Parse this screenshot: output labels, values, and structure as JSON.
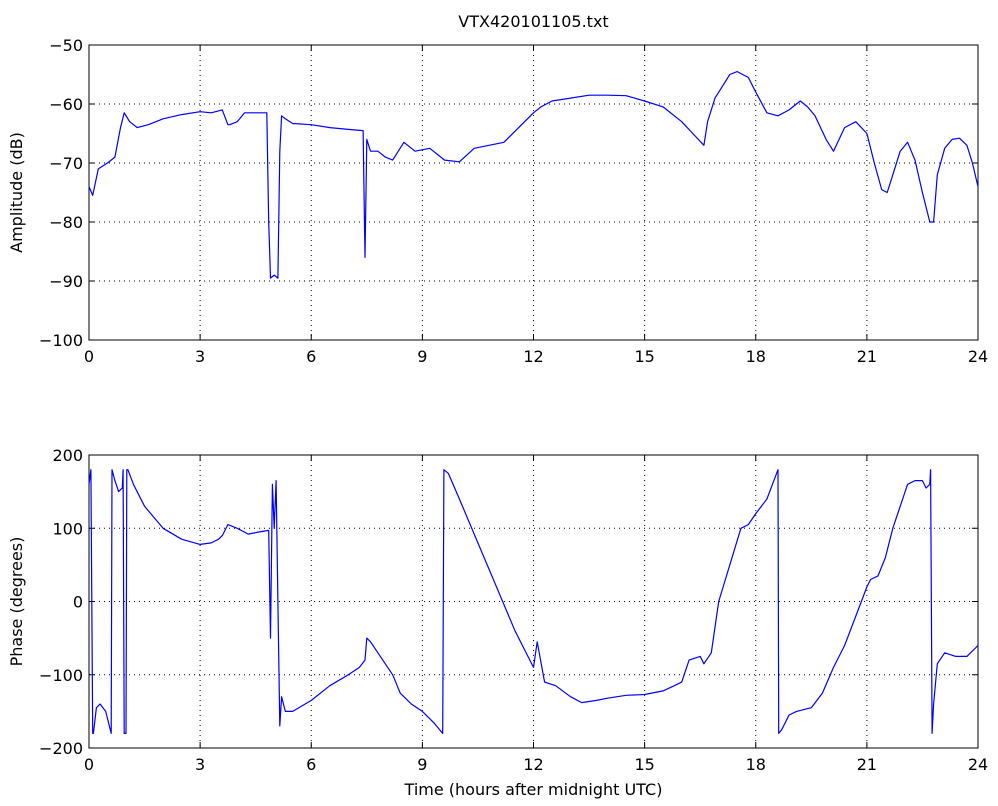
{
  "figure_title": "VTX420101105.txt",
  "colors": {
    "series": "#0000ff",
    "axes": "#000000",
    "background": "#ffffff"
  },
  "chart_data": [
    {
      "type": "line",
      "title": "VTX420101105.txt",
      "xlabel": "",
      "ylabel": "Amplitude (dB)",
      "xlim": [
        0,
        24
      ],
      "ylim": [
        -100,
        -50
      ],
      "xticks": [
        0,
        3,
        6,
        9,
        12,
        15,
        18,
        21,
        24
      ],
      "yticks": [
        -100,
        -90,
        -80,
        -70,
        -60,
        -50
      ],
      "xtick_labels": [
        "0",
        "3",
        "6",
        "9",
        "12",
        "15",
        "18",
        "21",
        "24"
      ],
      "ytick_labels": [
        "−100",
        "−90",
        "−80",
        "−70",
        "−60",
        "−50"
      ],
      "grid": true,
      "series": [
        {
          "x": [
            0,
            0.1,
            0.25,
            0.5,
            0.7,
            0.85,
            0.95,
            1.1,
            1.3,
            1.6,
            2.0,
            2.5,
            3.0,
            3.3,
            3.6,
            3.75,
            3.8,
            4.0,
            4.2,
            4.5,
            4.8,
            4.85,
            4.9,
            5.0,
            5.1,
            5.15,
            5.2,
            5.3,
            5.5,
            6.0,
            6.5,
            7.0,
            7.4,
            7.45,
            7.5,
            7.6,
            7.8,
            8.0,
            8.2,
            8.5,
            8.8,
            9.2,
            9.6,
            10.0,
            10.4,
            10.8,
            11.2,
            11.6,
            12.0,
            12.2,
            12.5,
            13.0,
            13.5,
            14.0,
            14.5,
            15.0,
            15.5,
            16.0,
            16.3,
            16.6,
            16.7,
            16.9,
            17.1,
            17.3,
            17.5,
            17.8,
            18.0,
            18.3,
            18.6,
            18.9,
            19.2,
            19.4,
            19.6,
            19.9,
            20.1,
            20.4,
            20.7,
            21.0,
            21.2,
            21.4,
            21.55,
            21.7,
            21.9,
            22.1,
            22.3,
            22.5,
            22.7,
            22.8,
            22.9,
            23.1,
            23.3,
            23.5,
            23.7,
            23.85,
            24.0
          ],
          "y": [
            -74,
            -75.5,
            -71,
            -70,
            -69,
            -64,
            -61.5,
            -63,
            -64,
            -63.5,
            -62.5,
            -61.8,
            -61.3,
            -61.5,
            -61,
            -63.5,
            -63.5,
            -63,
            -61.5,
            -61.5,
            -61.5,
            -80,
            -89.5,
            -89,
            -89.5,
            -68,
            -62,
            -62.5,
            -63.3,
            -63.5,
            -64,
            -64.3,
            -64.5,
            -86,
            -66,
            -68,
            -68,
            -69,
            -69.5,
            -66.5,
            -68,
            -67.5,
            -69.5,
            -69.8,
            -67.5,
            -67,
            -66.5,
            -64,
            -61.5,
            -60.5,
            -59.5,
            -59,
            -58.5,
            -58.5,
            -58.6,
            -59.5,
            -60.5,
            -63,
            -65,
            -67,
            -63,
            -59,
            -57,
            -55,
            -54.5,
            -55.5,
            -58,
            -61.5,
            -62,
            -61,
            -59.5,
            -60.5,
            -62,
            -66,
            -68,
            -64,
            -63,
            -65,
            -70,
            -74.5,
            -75,
            -72,
            -68,
            -66.5,
            -69.5,
            -75,
            -80,
            -80,
            -72,
            -67.5,
            -66,
            -65.8,
            -67,
            -70,
            -74
          ]
        }
      ]
    },
    {
      "type": "line",
      "title": "",
      "xlabel": "Time (hours after midnight UTC)",
      "ylabel": "Phase (degrees)",
      "xlim": [
        0,
        24
      ],
      "ylim": [
        -200,
        200
      ],
      "xticks": [
        0,
        3,
        6,
        9,
        12,
        15,
        18,
        21,
        24
      ],
      "yticks": [
        -200,
        -100,
        0,
        100,
        200
      ],
      "xtick_labels": [
        "0",
        "3",
        "6",
        "9",
        "12",
        "15",
        "18",
        "21",
        "24"
      ],
      "ytick_labels": [
        "−200",
        "−100",
        "0",
        "100",
        "200"
      ],
      "grid": true,
      "series": [
        {
          "x": [
            0,
            0.05,
            0.1,
            0.12,
            0.2,
            0.3,
            0.45,
            0.6,
            0.62,
            0.7,
            0.8,
            0.9,
            0.92,
            0.95,
            1.0,
            1.02,
            1.05,
            1.2,
            1.5,
            2.0,
            2.5,
            3.0,
            3.3,
            3.5,
            3.6,
            3.75,
            4.0,
            4.3,
            4.6,
            4.85,
            4.9,
            4.95,
            5.0,
            5.05,
            5.1,
            5.15,
            5.2,
            5.3,
            5.5,
            6.0,
            6.5,
            7.0,
            7.3,
            7.45,
            7.5,
            7.6,
            7.8,
            8.0,
            8.2,
            8.4,
            8.7,
            9.0,
            9.3,
            9.55,
            9.58,
            9.7,
            10.0,
            10.5,
            11.0,
            11.5,
            12.0,
            12.1,
            12.3,
            12.6,
            13.0,
            13.3,
            13.7,
            14.0,
            14.5,
            15.0,
            15.5,
            15.8,
            16.0,
            16.2,
            16.5,
            16.6,
            16.8,
            17.0,
            17.3,
            17.6,
            17.8,
            18.0,
            18.3,
            18.6,
            18.62,
            18.7,
            18.9,
            19.1,
            19.5,
            19.8,
            20.1,
            20.4,
            20.7,
            21.0,
            21.1,
            21.3,
            21.5,
            21.7,
            21.9,
            22.1,
            22.3,
            22.5,
            22.6,
            22.7,
            22.72,
            22.76,
            22.8,
            22.9,
            23.1,
            23.4,
            23.7,
            24.0
          ],
          "y": [
            160,
            180,
            -180,
            -180,
            -145,
            -140,
            -150,
            -180,
            180,
            165,
            150,
            155,
            180,
            -180,
            -180,
            180,
            180,
            160,
            130,
            100,
            85,
            78,
            80,
            85,
            90,
            105,
            100,
            92,
            95,
            97,
            -50,
            160,
            100,
            165,
            0,
            -170,
            -130,
            -150,
            -150,
            -135,
            -115,
            -100,
            -90,
            -80,
            -50,
            -55,
            -70,
            -85,
            -100,
            -125,
            -140,
            -150,
            -165,
            -180,
            180,
            175,
            140,
            80,
            20,
            -40,
            -90,
            -55,
            -110,
            -115,
            -130,
            -138,
            -135,
            -132,
            -128,
            -127,
            -122,
            -115,
            -110,
            -80,
            -75,
            -85,
            -70,
            0,
            50,
            100,
            105,
            120,
            140,
            180,
            -180,
            -175,
            -155,
            -150,
            -145,
            -125,
            -90,
            -60,
            -20,
            20,
            30,
            35,
            60,
            100,
            130,
            160,
            165,
            165,
            155,
            160,
            180,
            -180,
            -140,
            -85,
            -70,
            -75,
            -75,
            -60
          ]
        }
      ]
    }
  ]
}
